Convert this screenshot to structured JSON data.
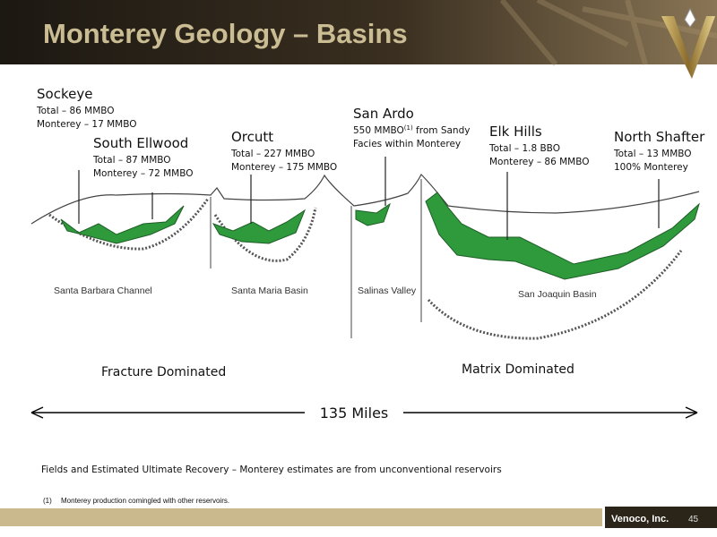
{
  "header": {
    "title": "Monterey Geology – Basins"
  },
  "fields": [
    {
      "name": "Sockeye",
      "lines": [
        "Total – 86 MMBO",
        "Monterey – 17 MMBO"
      ]
    },
    {
      "name": "South Ellwood",
      "lines": [
        "Total – 87 MMBO",
        "Monterey – 72 MMBO"
      ]
    },
    {
      "name": "Orcutt",
      "lines": [
        "Total – 227 MMBO",
        "Monterey – 175 MMBO"
      ]
    },
    {
      "name": "San Ardo",
      "lines": [
        {
          "text": "550 MMBO",
          "note": "(1)",
          "rest": " from Sandy"
        },
        "Facies within Monterey"
      ]
    },
    {
      "name": "Elk Hills",
      "lines": [
        "Total – 1.8 BBO",
        "Monterey – 86 MMBO"
      ]
    },
    {
      "name": "North Shafter",
      "lines": [
        "Total – 13 MMBO",
        "100% Monterey"
      ]
    }
  ],
  "basins": [
    "Santa Barbara Channel",
    "Santa Maria Basin",
    "Salinas Valley",
    "San Joaquin Basin"
  ],
  "regimes": [
    "Fracture Dominated",
    "Matrix Dominated"
  ],
  "distance": "135 Miles",
  "caption": "Fields and Estimated Ultimate Recovery – Monterey estimates are from unconventional reservoirs",
  "footnote": {
    "marker": "(1)",
    "text": "Monterey production comingled with other reservoirs."
  },
  "footer": {
    "company": "Venoco, Inc.",
    "page": 45
  }
}
